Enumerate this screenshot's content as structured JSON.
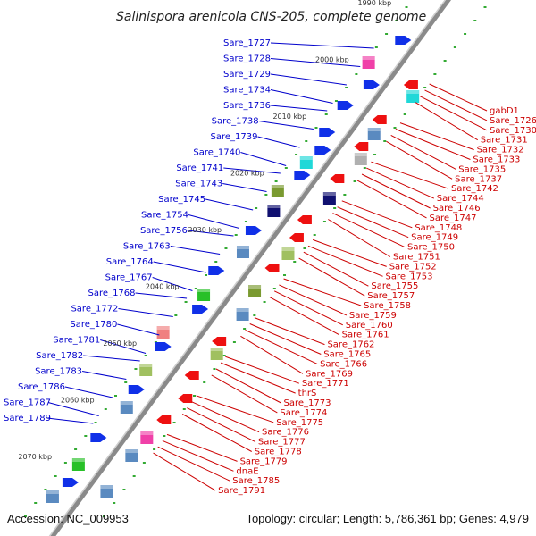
{
  "title": "Salinispora arenicola CNS-205, complete genome",
  "accession": "Accession: NC_009953",
  "summary": "Topology: circular; Length: 5,786,361 bp; Genes: 4,979",
  "colors": {
    "forward_strand_label": "#0000cc",
    "reverse_strand_label": "#cc0000",
    "backbone": "#8a8a8a",
    "tick": "#33aa33"
  },
  "scale_labels": [
    "1990 kbp",
    "2000 kbp",
    "2010 kbp",
    "2020 kbp",
    "2030 kbp",
    "2040 kbp",
    "2050 kbp",
    "2060 kbp",
    "2070 kbp"
  ],
  "forward_genes": [
    "Sare_1727",
    "Sare_1728",
    "Sare_1729",
    "Sare_1734",
    "Sare_1736",
    "Sare_1738",
    "Sare_1739",
    "Sare_1740",
    "Sare_1741",
    "Sare_1743",
    "Sare_1745",
    "Sare_1754",
    "Sare_1756",
    "Sare_1763",
    "Sare_1764",
    "Sare_1767",
    "Sare_1768",
    "Sare_1772",
    "Sare_1780",
    "Sare_1781",
    "Sare_1782",
    "Sare_1783",
    "Sare_1786",
    "Sare_1787",
    "Sare_1789"
  ],
  "reverse_genes": [
    "gabD1",
    "Sare_1726",
    "Sare_1730",
    "Sare_1731",
    "Sare_1732",
    "Sare_1733",
    "Sare_1735",
    "Sare_1737",
    "Sare_1742",
    "Sare_1744",
    "Sare_1746",
    "Sare_1747",
    "Sare_1748",
    "Sare_1749",
    "Sare_1750",
    "Sare_1751",
    "Sare_1752",
    "Sare_1753",
    "Sare_1755",
    "Sare_1757",
    "Sare_1758",
    "Sare_1759",
    "Sare_1760",
    "Sare_1761",
    "Sare_1762",
    "Sare_1765",
    "Sare_1766",
    "Sare_1769",
    "Sare_1771",
    "thrS",
    "Sare_1773",
    "Sare_1774",
    "Sare_1775",
    "Sare_1776",
    "Sare_1777",
    "Sare_1778",
    "Sare_1779",
    "dnaE",
    "Sare_1785",
    "Sare_1791"
  ]
}
